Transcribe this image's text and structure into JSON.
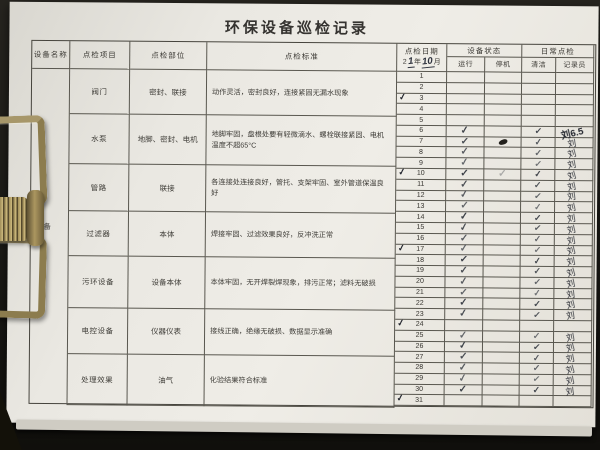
{
  "title": "环保设备巡检记录",
  "headers": {
    "equipment_name": "设备名称",
    "item": "点检项目",
    "part": "点检部位",
    "standard": "点检标准",
    "date_label": "点检日期",
    "date_prefix": "2",
    "date_year_hw": "1",
    "date_year_unit": "年",
    "date_month_hw": "10",
    "date_month_unit": "月",
    "status_group": "设备状态",
    "running": "运行",
    "stopped": "停机",
    "daily_group": "日常点检",
    "cleaning": "清洁",
    "recorder": "记录员"
  },
  "equipment_name_value": "设备",
  "equipment_rows": [
    {
      "item": "阀门",
      "part": "密封、联接",
      "standard": "动作灵活，密封良好，连接紧固无漏水现象"
    },
    {
      "item": "水泵",
      "part": "地脚、密封、电机",
      "standard": "地脚牢固，盘根处要有轻微滴水、螺栓联接紧固、电机温度不超65°C"
    },
    {
      "item": "管路",
      "part": "联接",
      "standard": "各连接处连接良好，管托、支架牢固、室外管道保温良好"
    },
    {
      "item": "过滤器",
      "part": "本体",
      "standard": "焊接牢固、过滤效果良好，反冲洗正常"
    },
    {
      "item": "污环设备",
      "part": "设备本体",
      "standard": "本体牢固，无开焊裂焊现象，排污正常；滤料无破损"
    },
    {
      "item": "电控设备",
      "part": "仪器仪表",
      "standard": "接线正确，绝缘无破损、数据显示准确"
    },
    {
      "item": "处理效果",
      "part": "油气",
      "standard": "化验结果符合标准"
    }
  ],
  "check_mark": "✓",
  "days": [
    {
      "day": "1",
      "week": false,
      "run": false,
      "stop": "",
      "clean": false,
      "sign": ""
    },
    {
      "day": "2",
      "week": false,
      "run": false,
      "stop": "",
      "clean": false,
      "sign": ""
    },
    {
      "day": "3",
      "week": true,
      "run": false,
      "stop": "",
      "clean": false,
      "sign": ""
    },
    {
      "day": "4",
      "week": false,
      "run": false,
      "stop": "",
      "clean": false,
      "sign": ""
    },
    {
      "day": "5",
      "week": false,
      "run": false,
      "stop": "",
      "clean": false,
      "sign": ""
    },
    {
      "day": "6",
      "week": false,
      "run": true,
      "stop": "",
      "clean": true,
      "sign": "刘6.5"
    },
    {
      "day": "7",
      "week": false,
      "run": true,
      "stop": "blob",
      "clean": true,
      "sign": "刘"
    },
    {
      "day": "8",
      "week": false,
      "run": true,
      "stop": "",
      "clean": true,
      "sign": "刘"
    },
    {
      "day": "9",
      "week": false,
      "run": true,
      "stop": "",
      "clean": true,
      "sign": "刘"
    },
    {
      "day": "10",
      "week": true,
      "run": true,
      "stop": "faint",
      "clean": true,
      "sign": "刘"
    },
    {
      "day": "11",
      "week": false,
      "run": true,
      "stop": "",
      "clean": true,
      "sign": "刘"
    },
    {
      "day": "12",
      "week": false,
      "run": true,
      "stop": "",
      "clean": true,
      "sign": "刘"
    },
    {
      "day": "13",
      "week": false,
      "run": true,
      "stop": "",
      "clean": true,
      "sign": "刘"
    },
    {
      "day": "14",
      "week": false,
      "run": true,
      "stop": "",
      "clean": true,
      "sign": "刘"
    },
    {
      "day": "15",
      "week": false,
      "run": true,
      "stop": "",
      "clean": true,
      "sign": "刘"
    },
    {
      "day": "16",
      "week": false,
      "run": true,
      "stop": "",
      "clean": true,
      "sign": "刘"
    },
    {
      "day": "17",
      "week": true,
      "run": true,
      "stop": "",
      "clean": true,
      "sign": "刘"
    },
    {
      "day": "18",
      "week": false,
      "run": true,
      "stop": "",
      "clean": true,
      "sign": "刘"
    },
    {
      "day": "19",
      "week": false,
      "run": true,
      "stop": "",
      "clean": true,
      "sign": "刘"
    },
    {
      "day": "20",
      "week": false,
      "run": true,
      "stop": "",
      "clean": true,
      "sign": "刘"
    },
    {
      "day": "21",
      "week": false,
      "run": true,
      "stop": "",
      "clean": true,
      "sign": "刘"
    },
    {
      "day": "22",
      "week": false,
      "run": true,
      "stop": "",
      "clean": true,
      "sign": "刘"
    },
    {
      "day": "23",
      "week": false,
      "run": true,
      "stop": "",
      "clean": true,
      "sign": "刘"
    },
    {
      "day": "24",
      "week": true,
      "run": false,
      "stop": "",
      "clean": false,
      "sign": ""
    },
    {
      "day": "25",
      "week": false,
      "run": true,
      "stop": "",
      "clean": true,
      "sign": "刘"
    },
    {
      "day": "26",
      "week": false,
      "run": true,
      "stop": "",
      "clean": true,
      "sign": "刘"
    },
    {
      "day": "27",
      "week": false,
      "run": true,
      "stop": "",
      "clean": true,
      "sign": "刘"
    },
    {
      "day": "28",
      "week": false,
      "run": true,
      "stop": "",
      "clean": true,
      "sign": "刘"
    },
    {
      "day": "29",
      "week": false,
      "run": true,
      "stop": "",
      "clean": true,
      "sign": "刘"
    },
    {
      "day": "30",
      "week": false,
      "run": true,
      "stop": "",
      "clean": true,
      "sign": "刘"
    },
    {
      "day": "31",
      "week": true,
      "run": false,
      "stop": "",
      "clean": false,
      "sign": ""
    }
  ]
}
